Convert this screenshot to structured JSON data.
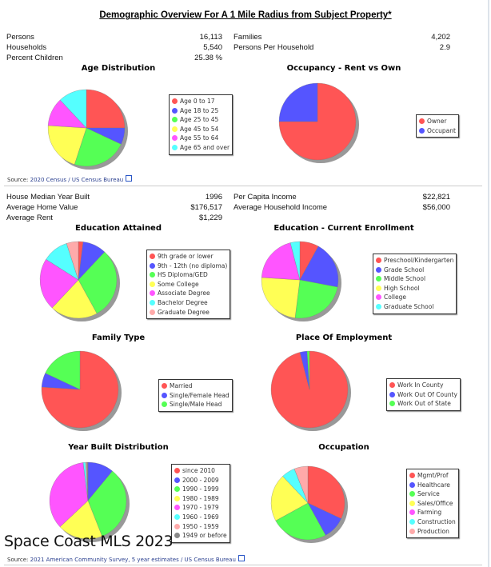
{
  "title": "Demographic Overview For A 1 Mile Radius from Subject Property*",
  "stats1": {
    "left": [
      {
        "label": "Persons",
        "value": "16,113"
      },
      {
        "label": "Households",
        "value": "5,540"
      },
      {
        "label": "Percent Children",
        "value": "25.38 %"
      }
    ],
    "right": [
      {
        "label": "Families",
        "value": "4,202"
      },
      {
        "label": "Persons Per Household",
        "value": "2.9"
      }
    ]
  },
  "stats2": {
    "left": [
      {
        "label": "House Median Year Built",
        "value": "1996"
      },
      {
        "label": "Average Home Value",
        "value": "$176,517"
      },
      {
        "label": "Average Rent",
        "value": "$1,229"
      }
    ],
    "right": [
      {
        "label": "Per Capita Income",
        "value": "$22,821"
      },
      {
        "label": "Average Household Income",
        "value": "$56,000"
      }
    ]
  },
  "source1": {
    "prefix": "Source: ",
    "link": "2020 Census / US Census Bureau"
  },
  "source2": {
    "prefix": "Source: ",
    "link": "2021 American Community Survey, 5 year estimates / US Census Bureau"
  },
  "watermark": "Space Coast MLS 2023",
  "chart_data": [
    {
      "type": "pie",
      "title": "Age Distribution",
      "labels": [
        "Age 0 to 17",
        "Age 18 to 25",
        "Age 25 to 45",
        "Age 45 to 54",
        "Age 55 to 64",
        "Age 65 and over"
      ],
      "values": [
        25,
        7,
        23,
        21,
        12,
        12
      ],
      "colors": [
        "#ff5555",
        "#5555ff",
        "#55ff55",
        "#ffff55",
        "#ff55ff",
        "#55ffff"
      ]
    },
    {
      "type": "pie",
      "title": "Occupancy - Rent vs Own",
      "labels": [
        "Owner",
        "Occupant"
      ],
      "values": [
        75,
        25
      ],
      "colors": [
        "#ff5555",
        "#5555ff"
      ]
    },
    {
      "type": "pie",
      "title": "Education Attained",
      "labels": [
        "9th grade or lower",
        "9th - 12th (no diploma)",
        "HS Diploma/GED",
        "Some College",
        "Associate Degree",
        "Bachelor Degree",
        "Graduate Degree"
      ],
      "values": [
        2,
        10,
        30,
        20,
        22,
        11,
        5
      ],
      "colors": [
        "#ff5555",
        "#5555ff",
        "#55ff55",
        "#ffff55",
        "#ff55ff",
        "#55ffff",
        "#ffaaaa"
      ]
    },
    {
      "type": "pie",
      "title": "Education - Current Enrollment",
      "labels": [
        "Preschool/Kindergarten",
        "Grade School",
        "Middle School",
        "High School",
        "College",
        "Graduate School"
      ],
      "values": [
        8,
        20,
        24,
        24,
        20,
        4
      ],
      "colors": [
        "#ff5555",
        "#5555ff",
        "#55ff55",
        "#ffff55",
        "#ff55ff",
        "#55ffff"
      ]
    },
    {
      "type": "pie",
      "title": "Family Type",
      "labels": [
        "Married",
        "Single/Female Head",
        "Single/Male Head"
      ],
      "values": [
        76,
        6,
        18
      ],
      "colors": [
        "#ff5555",
        "#5555ff",
        "#55ff55"
      ]
    },
    {
      "type": "pie",
      "title": "Place Of Employment",
      "labels": [
        "Work In County",
        "Work Out Of County",
        "Work Out of State"
      ],
      "values": [
        96,
        3,
        1
      ],
      "colors": [
        "#ff5555",
        "#5555ff",
        "#55ff55"
      ]
    },
    {
      "type": "pie",
      "title": "Year Built Distribution",
      "labels": [
        "since 2010",
        "2000 - 2009",
        "1990 - 1999",
        "1980 - 1989",
        "1970 - 1979",
        "1960 - 1969",
        "1950 - 1959",
        "1949 or before"
      ],
      "values": [
        0,
        11,
        33,
        19,
        35,
        1,
        0.5,
        0.5
      ],
      "colors": [
        "#ff5555",
        "#5555ff",
        "#55ff55",
        "#ffff55",
        "#ff55ff",
        "#55ffff",
        "#ffaaaa",
        "#888888"
      ]
    },
    {
      "type": "pie",
      "title": "Occupation",
      "labels": [
        "Mgmt/Prof",
        "Healthcare",
        "Service",
        "Sales/Office",
        "Farming",
        "Construction",
        "Production"
      ],
      "values": [
        32,
        10,
        25,
        21,
        0,
        6,
        6
      ],
      "colors": [
        "#ff5555",
        "#5555ff",
        "#55ff55",
        "#ffff55",
        "#ff55ff",
        "#55ffff",
        "#ffaaaa"
      ]
    }
  ]
}
